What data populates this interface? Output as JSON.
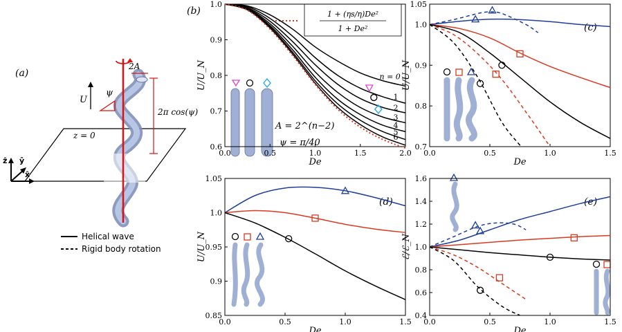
{
  "colors": {
    "blue": "#1f3d9e",
    "red": "#d9391f",
    "black": "#000000",
    "pink": "#e040d0",
    "cyan": "#19a8e6",
    "tube": "#9fb0d4"
  },
  "panel_a": {
    "label": "(a)",
    "U": "U",
    "psi": "ψ",
    "amp": "2A",
    "pitch": "2π cos(ψ)",
    "plane": "z = 0",
    "axes": [
      "ẑ",
      "ŷ",
      "x̂"
    ],
    "legend": {
      "solid": "Helical wave",
      "dashed": "Rigid body rotation"
    }
  },
  "panel_b": {
    "label": "(b)",
    "formula_num": "1 + (ηs/η)De²",
    "formula_den": "1 + De²",
    "A_text": "A = 2^(n−2)",
    "psi_text": "ψ = π/40",
    "n_labels": [
      "n = 0",
      "1",
      "2",
      "3",
      "4",
      "5",
      "6"
    ]
  },
  "chart_data": [
    {
      "panel": "b",
      "type": "line",
      "xlabel": "De",
      "ylabel": "U/U_N",
      "xlim": [
        0,
        2.0
      ],
      "ylim": [
        0.6,
        1.0
      ],
      "xticks": [
        "0.0",
        "0.5",
        "1.0",
        "1.5",
        "2.0"
      ],
      "yticks": [
        "0.6",
        "0.7",
        "0.8",
        "0.9",
        "1.0"
      ],
      "series": [
        {
          "name": "n=0",
          "x": [
            0,
            0.25,
            0.5,
            0.75,
            1,
            1.25,
            1.5,
            1.75,
            2
          ],
          "y": [
            1,
            0.995,
            0.97,
            0.93,
            0.88,
            0.84,
            0.807,
            0.785,
            0.77
          ]
        },
        {
          "name": "n=1",
          "x": [
            0,
            0.25,
            0.5,
            0.75,
            1,
            1.25,
            1.5,
            1.75,
            2
          ],
          "y": [
            1,
            0.993,
            0.96,
            0.91,
            0.85,
            0.8,
            0.764,
            0.74,
            0.722
          ]
        },
        {
          "name": "n=2",
          "x": [
            0,
            0.25,
            0.5,
            0.75,
            1,
            1.25,
            1.5,
            1.75,
            2
          ],
          "y": [
            1,
            0.99,
            0.952,
            0.895,
            0.83,
            0.775,
            0.735,
            0.71,
            0.695
          ]
        },
        {
          "name": "n=3",
          "x": [
            0,
            0.25,
            0.5,
            0.75,
            1,
            1.25,
            1.5,
            1.75,
            2
          ],
          "y": [
            1,
            0.988,
            0.945,
            0.882,
            0.81,
            0.752,
            0.71,
            0.683,
            0.667
          ]
        },
        {
          "name": "n=4",
          "x": [
            0,
            0.25,
            0.5,
            0.75,
            1,
            1.25,
            1.5,
            1.75,
            2
          ],
          "y": [
            1,
            0.986,
            0.94,
            0.872,
            0.795,
            0.733,
            0.69,
            0.66,
            0.642
          ]
        },
        {
          "name": "n=5",
          "x": [
            0,
            0.25,
            0.5,
            0.75,
            1,
            1.25,
            1.5,
            1.75,
            2
          ],
          "y": [
            1,
            0.985,
            0.936,
            0.865,
            0.785,
            0.72,
            0.674,
            0.642,
            0.62
          ]
        },
        {
          "name": "n=6",
          "x": [
            0,
            0.25,
            0.5,
            0.75,
            1,
            1.25,
            1.5,
            1.75,
            2
          ],
          "y": [
            1,
            0.984,
            0.933,
            0.86,
            0.778,
            0.71,
            0.662,
            0.627,
            0.604
          ]
        },
        {
          "name": "(1+(ηs/η)De²)/(1+De²)",
          "dashed": true,
          "x": [
            0,
            0.25,
            0.5,
            0.75,
            1,
            1.25,
            1.5,
            1.75,
            2
          ],
          "y": [
            1,
            0.983,
            0.93,
            0.856,
            0.775,
            0.705,
            0.655,
            0.62,
            0.596
          ]
        }
      ],
      "markers": [
        {
          "shape": "triangle-down",
          "color": "pink",
          "x": 1.6,
          "y": 0.765
        },
        {
          "shape": "circle",
          "color": "black",
          "x": 1.65,
          "y": 0.738
        },
        {
          "shape": "diamond",
          "color": "cyan",
          "x": 1.7,
          "y": 0.705
        }
      ]
    },
    {
      "panel": "c",
      "type": "line",
      "xlabel": "De",
      "ylabel": "U/U_N",
      "xlim": [
        0,
        1.5
      ],
      "ylim": [
        0.7,
        1.05
      ],
      "xticks": [
        "0.0",
        "0.5",
        "1.0",
        "1.5"
      ],
      "yticks": [
        "0.7",
        "0.8",
        "0.9",
        "1.0",
        "1.05"
      ],
      "series": [
        {
          "name": "blue helical",
          "color": "blue",
          "x": [
            0,
            0.25,
            0.5,
            0.75,
            1,
            1.25,
            1.5
          ],
          "y": [
            1,
            1.008,
            1.013,
            1.012,
            1.007,
            1.0,
            0.995
          ]
        },
        {
          "name": "blue rigid",
          "color": "blue",
          "dashed": true,
          "x": [
            0,
            0.2,
            0.4,
            0.5,
            0.6,
            0.8,
            0.9
          ],
          "y": [
            1,
            1.012,
            1.027,
            1.031,
            1.027,
            1.0,
            0.98
          ]
        },
        {
          "name": "red helical",
          "color": "red",
          "x": [
            0,
            0.25,
            0.5,
            0.75,
            1,
            1.25,
            1.5
          ],
          "y": [
            1,
            0.99,
            0.967,
            0.93,
            0.897,
            0.87,
            0.845
          ]
        },
        {
          "name": "red rigid",
          "color": "red",
          "dashed": true,
          "x": [
            0,
            0.2,
            0.4,
            0.6,
            0.8,
            1.0
          ],
          "y": [
            1,
            0.975,
            0.928,
            0.865,
            0.785,
            0.7
          ]
        },
        {
          "name": "black helical",
          "color": "black",
          "x": [
            0,
            0.25,
            0.5,
            0.75,
            1,
            1.25,
            1.5
          ],
          "y": [
            1,
            0.98,
            0.93,
            0.87,
            0.81,
            0.76,
            0.72
          ]
        },
        {
          "name": "black rigid",
          "color": "black",
          "dashed": true,
          "x": [
            0,
            0.2,
            0.4,
            0.6,
            0.76
          ],
          "y": [
            1,
            0.955,
            0.87,
            0.76,
            0.7
          ]
        }
      ],
      "markers": [
        {
          "shape": "triangle",
          "color": "blue",
          "x": 0.52,
          "y": 1.035
        },
        {
          "shape": "triangle",
          "color": "blue",
          "x": 0.38,
          "y": 1.013
        },
        {
          "shape": "square",
          "color": "red",
          "x": 0.75,
          "y": 0.928
        },
        {
          "shape": "square",
          "color": "red",
          "x": 0.55,
          "y": 0.878
        },
        {
          "shape": "circle",
          "color": "black",
          "x": 0.6,
          "y": 0.9
        },
        {
          "shape": "circle",
          "color": "black",
          "x": 0.42,
          "y": 0.855
        }
      ]
    },
    {
      "panel": "d",
      "type": "line",
      "xlabel": "De",
      "ylabel": "U/U_N",
      "xlim": [
        0,
        1.5
      ],
      "ylim": [
        0.85,
        1.05
      ],
      "xticks": [
        "0.0",
        "0.5",
        "1.0",
        "1.5"
      ],
      "yticks": [
        "0.85",
        "0.9",
        "0.95",
        "1.0",
        "1.05"
      ],
      "series": [
        {
          "name": "blue",
          "color": "blue",
          "x": [
            0,
            0.25,
            0.5,
            0.75,
            1,
            1.25,
            1.5
          ],
          "y": [
            1,
            1.025,
            1.036,
            1.037,
            1.032,
            1.022,
            1.01
          ]
        },
        {
          "name": "red",
          "color": "red",
          "x": [
            0,
            0.25,
            0.5,
            0.75,
            1,
            1.25,
            1.5
          ],
          "y": [
            1,
            1.003,
            1.0,
            0.992,
            0.983,
            0.976,
            0.971
          ]
        },
        {
          "name": "black",
          "color": "black",
          "x": [
            0,
            0.25,
            0.5,
            0.75,
            1,
            1.25,
            1.5
          ],
          "y": [
            1,
            0.985,
            0.964,
            0.94,
            0.915,
            0.893,
            0.873
          ]
        }
      ],
      "markers": [
        {
          "shape": "triangle",
          "color": "blue",
          "x": 1.0,
          "y": 1.032
        },
        {
          "shape": "square",
          "color": "red",
          "x": 0.75,
          "y": 0.992
        },
        {
          "shape": "circle",
          "color": "black",
          "x": 0.53,
          "y": 0.962
        }
      ]
    },
    {
      "panel": "e",
      "type": "line",
      "xlabel": "De",
      "ylabel": "ℰ/ℰ_N",
      "xlim": [
        0,
        1.5
      ],
      "ylim": [
        0.4,
        1.6
      ],
      "xticks": [
        "0.0",
        "0.5",
        "1.0",
        "1.5"
      ],
      "yticks": [
        "0.4",
        "0.6",
        "0.8",
        "1.0",
        "1.2",
        "1.4",
        "1.6"
      ],
      "series": [
        {
          "name": "blue helical",
          "color": "blue",
          "x": [
            0,
            0.25,
            0.5,
            0.75,
            1,
            1.25,
            1.5
          ],
          "y": [
            1,
            1.06,
            1.15,
            1.24,
            1.31,
            1.38,
            1.44
          ]
        },
        {
          "name": "blue rigid",
          "color": "blue",
          "dashed": true,
          "x": [
            0,
            0.2,
            0.4,
            0.55,
            0.7,
            0.8
          ],
          "y": [
            1,
            1.09,
            1.18,
            1.21,
            1.2,
            1.15
          ]
        },
        {
          "name": "red helical",
          "color": "red",
          "x": [
            0,
            0.25,
            0.5,
            0.75,
            1,
            1.25,
            1.5
          ],
          "y": [
            1,
            1.02,
            1.04,
            1.06,
            1.075,
            1.09,
            1.1
          ]
        },
        {
          "name": "red rigid",
          "color": "red",
          "dashed": true,
          "x": [
            0,
            0.2,
            0.4,
            0.6,
            0.8
          ],
          "y": [
            1,
            0.93,
            0.82,
            0.68,
            0.54
          ]
        },
        {
          "name": "black helical",
          "color": "black",
          "x": [
            0,
            0.25,
            0.5,
            0.75,
            1,
            1.25,
            1.5
          ],
          "y": [
            1,
            0.975,
            0.95,
            0.93,
            0.91,
            0.895,
            0.885
          ]
        },
        {
          "name": "black rigid",
          "color": "black",
          "dashed": true,
          "x": [
            0,
            0.2,
            0.4,
            0.6,
            0.75
          ],
          "y": [
            1,
            0.88,
            0.65,
            0.48,
            0.4
          ]
        }
      ],
      "markers": [
        {
          "shape": "triangle",
          "color": "blue",
          "x": 0.38,
          "y": 1.19
        },
        {
          "shape": "triangle",
          "color": "blue",
          "x": 0.42,
          "y": 1.14
        },
        {
          "shape": "square",
          "color": "red",
          "x": 1.2,
          "y": 1.08
        },
        {
          "shape": "square",
          "color": "red",
          "x": 0.58,
          "y": 0.73
        },
        {
          "shape": "circle",
          "color": "black",
          "x": 1.0,
          "y": 0.91
        },
        {
          "shape": "circle",
          "color": "black",
          "x": 0.42,
          "y": 0.62
        }
      ]
    }
  ],
  "panel_c": {
    "label": "(c)"
  },
  "panel_d": {
    "label": "(d)"
  },
  "panel_e": {
    "label": "(e)"
  }
}
